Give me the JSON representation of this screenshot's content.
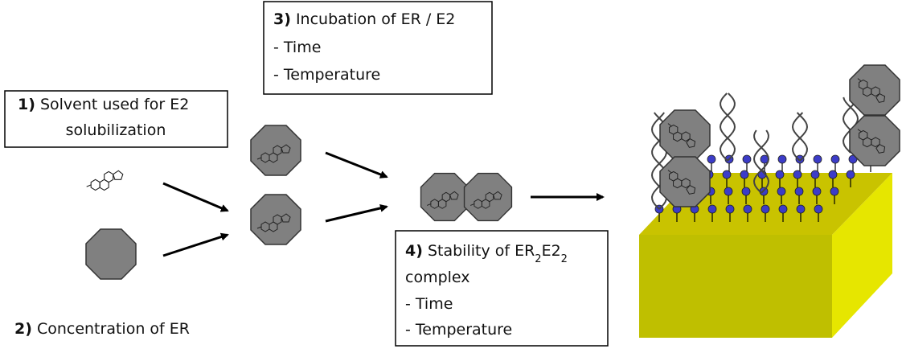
{
  "boxes": [
    {
      "number": "1)",
      "lines": [
        [
          {
            "text": " Solvent used for E2"
          }
        ],
        [
          {
            "text": "solubilization"
          }
        ]
      ]
    },
    {
      "number": "2)",
      "lines": [
        [
          {
            "text": " Concentration of ER"
          }
        ]
      ]
    },
    {
      "number": "3)",
      "lines": [
        [
          {
            "text": " Incubation of ER / E2"
          }
        ],
        [
          {
            "text": "- Time"
          }
        ],
        [
          {
            "text": "- Temperature"
          }
        ]
      ]
    },
    {
      "number": "4)",
      "lines": [
        [
          {
            "text": " Stability of ER"
          },
          {
            "text": "2",
            "sub": true
          },
          {
            "text": "E2"
          },
          {
            "text": "2",
            "sub": true
          }
        ],
        [
          {
            "text": "complex"
          }
        ],
        [
          {
            "text": "- Time"
          }
        ],
        [
          {
            "text": "- Temperature"
          }
        ]
      ]
    }
  ]
}
